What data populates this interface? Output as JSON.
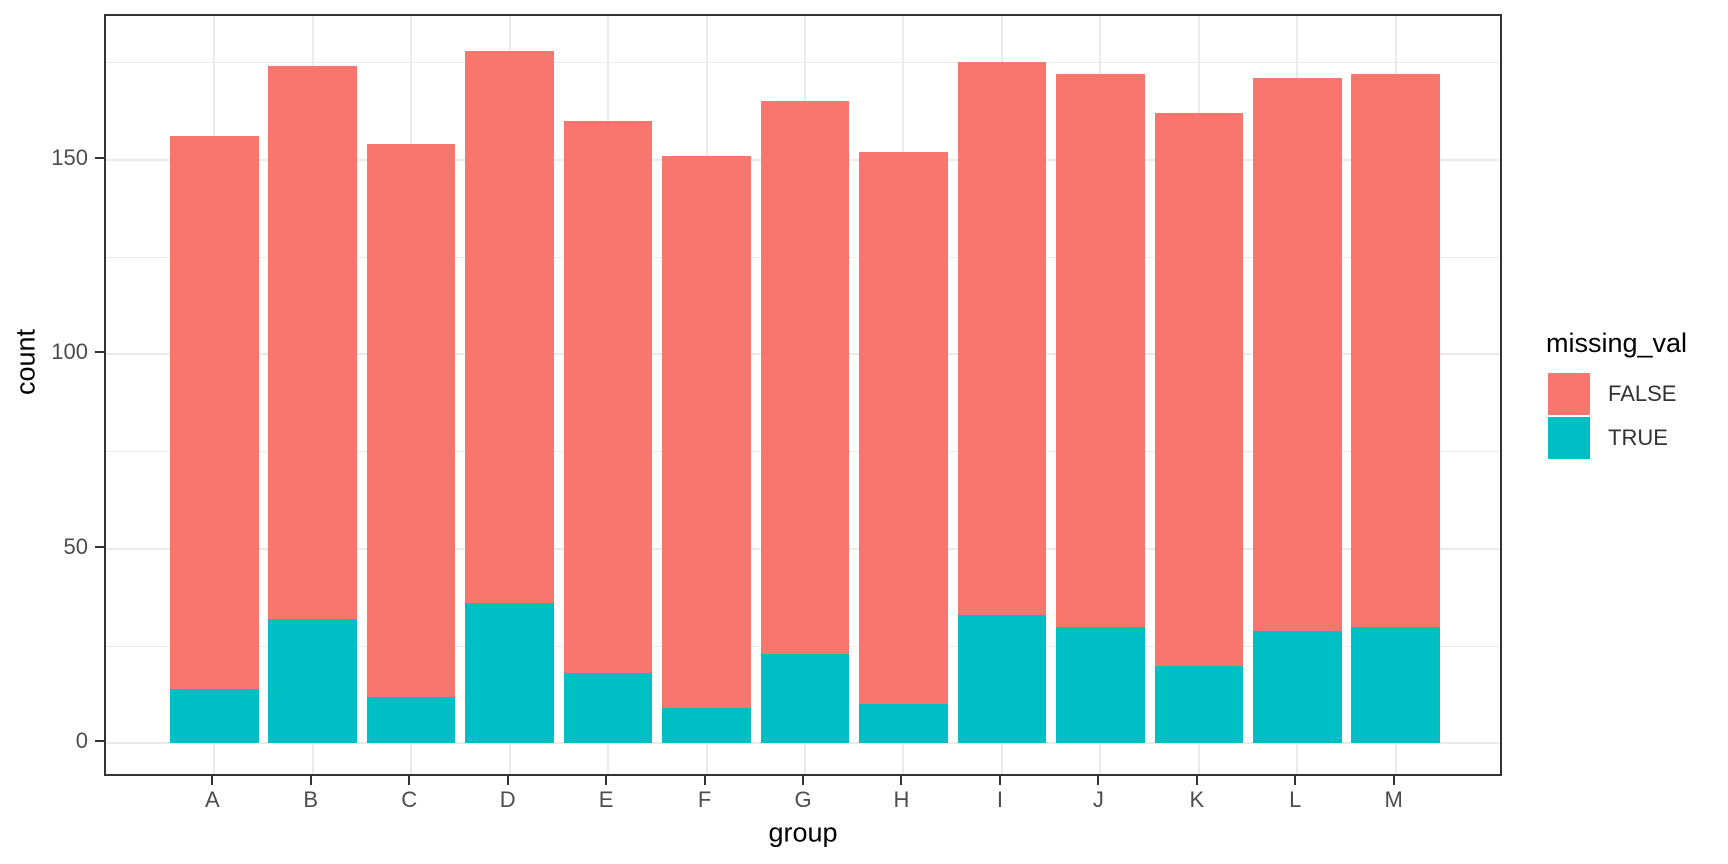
{
  "chart_data": {
    "type": "bar",
    "stacked": true,
    "title": "",
    "xlabel": "group",
    "ylabel": "count",
    "categories": [
      "A",
      "B",
      "C",
      "D",
      "E",
      "F",
      "G",
      "H",
      "I",
      "J",
      "K",
      "L",
      "M"
    ],
    "series": [
      {
        "name": "FALSE",
        "color": "#F8766D",
        "values": [
          142,
          142,
          142,
          142,
          142,
          142,
          142,
          142,
          142,
          142,
          142,
          142,
          142
        ]
      },
      {
        "name": "TRUE",
        "color": "#00BFC4",
        "values": [
          14,
          32,
          12,
          36,
          18,
          9,
          23,
          10,
          33,
          30,
          20,
          29,
          30
        ]
      }
    ],
    "stack_order_bottom_to_top": [
      "TRUE",
      "FALSE"
    ],
    "totals": [
      156,
      174,
      154,
      178,
      160,
      151,
      165,
      152,
      175,
      172,
      162,
      171,
      172
    ],
    "y_major_ticks": [
      0,
      50,
      100,
      150
    ],
    "y_minor_ticks": [
      25,
      75,
      125,
      175
    ],
    "y_tick_labels": [
      "0",
      "50",
      "100",
      "150"
    ],
    "ylim": [
      0,
      178
    ],
    "grid": true,
    "legend_position": "right",
    "legend": {
      "title": "missing_val",
      "entries": [
        {
          "label": "FALSE",
          "color": "#F8766D"
        },
        {
          "label": "TRUE",
          "color": "#00BFC4"
        }
      ]
    },
    "colors": {
      "panel_border": "#333333",
      "gridline": "#EBEBEB",
      "tick_text": "#4D4D4D",
      "axis_title_text": "#000000",
      "legend_text": "#333333"
    }
  }
}
